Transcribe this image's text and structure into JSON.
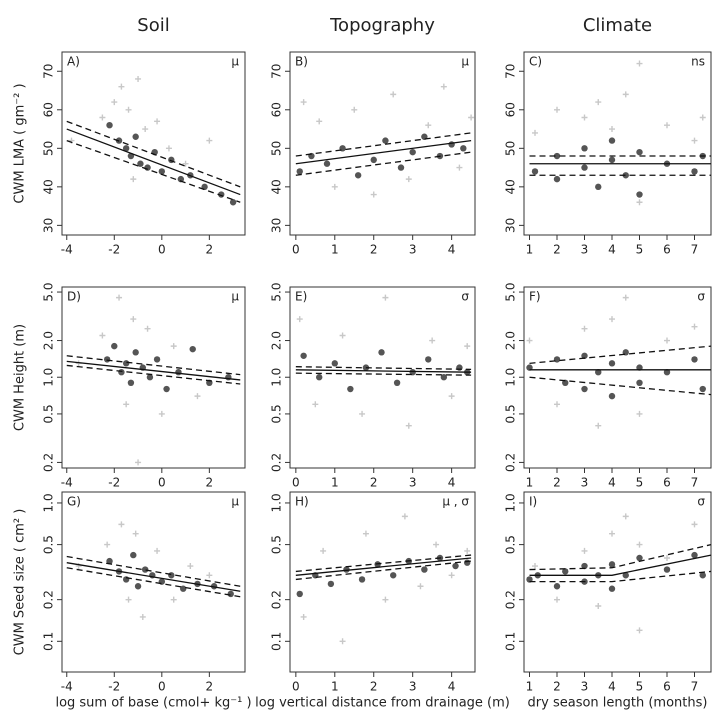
{
  "chart_data": [
    {
      "type": "scatter",
      "title": "Soil",
      "ylabel": "CWM LMA ( gm⁻² )",
      "panel": "A)",
      "note": "μ",
      "xlim": [
        -4.2,
        3.5
      ],
      "ylim": [
        27.5,
        75
      ],
      "xticks": [
        -4,
        -2,
        0,
        2
      ],
      "yticks": [
        30,
        40,
        50,
        60,
        70
      ],
      "series": [
        {
          "color": "#c8c8c8",
          "marker": "plus",
          "x": [
            -3.8,
            -2.5,
            -2,
            -1.7,
            -1.4,
            -1.2,
            -1,
            -0.7,
            -0.2,
            0.3,
            1,
            2
          ],
          "values": [
            52,
            58,
            62,
            66,
            60,
            42,
            68,
            55,
            57,
            50,
            46,
            52
          ]
        },
        {
          "color": "#555555",
          "marker": "circle",
          "x": [
            -2.2,
            -1.8,
            -1.5,
            -1.3,
            -1.1,
            -0.9,
            -0.6,
            -0.3,
            0,
            0.4,
            0.8,
            1.2,
            1.8,
            2.5,
            3
          ],
          "values": [
            56,
            52,
            50,
            48,
            53,
            46,
            45,
            49,
            44,
            47,
            42,
            43,
            40,
            38,
            36
          ]
        }
      ],
      "lines": [
        {
          "style": "solid",
          "x": [
            -4,
            3.3
          ],
          "values": [
            55,
            38
          ]
        },
        {
          "style": "dashed",
          "x": [
            -4,
            3.3
          ],
          "values": [
            57,
            40
          ]
        },
        {
          "style": "dashed",
          "x": [
            -4,
            3.3
          ],
          "values": [
            52,
            36
          ]
        }
      ]
    },
    {
      "type": "scatter",
      "title": "Topography",
      "panel": "B)",
      "note": "μ",
      "xlim": [
        -0.15,
        4.6
      ],
      "ylim": [
        27.5,
        75
      ],
      "xticks": [
        0,
        1,
        2,
        3,
        4
      ],
      "yticks": [
        30,
        40,
        50,
        60,
        70
      ],
      "series": [
        {
          "color": "#c8c8c8",
          "marker": "plus",
          "x": [
            0.2,
            0.6,
            1,
            1.5,
            2,
            2.5,
            2.9,
            3.4,
            3.8,
            4.2,
            4.5
          ],
          "values": [
            62,
            57,
            40,
            60,
            38,
            64,
            42,
            56,
            66,
            45,
            58
          ]
        },
        {
          "color": "#555555",
          "marker": "circle",
          "x": [
            0.1,
            0.4,
            0.8,
            1.2,
            1.6,
            2,
            2.3,
            2.7,
            3,
            3.3,
            3.7,
            4,
            4.3
          ],
          "values": [
            44,
            48,
            46,
            50,
            43,
            47,
            52,
            45,
            49,
            53,
            48,
            51,
            50
          ]
        }
      ],
      "lines": [
        {
          "style": "solid",
          "x": [
            0,
            4.5
          ],
          "values": [
            46,
            52
          ]
        },
        {
          "style": "dashed",
          "x": [
            0,
            4.5
          ],
          "values": [
            48,
            54
          ]
        },
        {
          "style": "dashed",
          "x": [
            0,
            4.5
          ],
          "values": [
            43,
            49
          ]
        }
      ]
    },
    {
      "type": "scatter",
      "title": "Climate",
      "panel": "C)",
      "note": "ns",
      "xlim": [
        0.8,
        7.6
      ],
      "ylim": [
        27.5,
        75
      ],
      "xticks": [
        1,
        2,
        3,
        4,
        5,
        6,
        7
      ],
      "yticks": [
        30,
        40,
        50,
        60,
        70
      ],
      "series": [
        {
          "color": "#c8c8c8",
          "marker": "plus",
          "x": [
            1.2,
            2,
            3,
            3.5,
            4,
            4.5,
            5,
            5,
            6,
            7,
            7.3
          ],
          "values": [
            54,
            60,
            58,
            62,
            55,
            64,
            72,
            36,
            56,
            52,
            58
          ]
        },
        {
          "color": "#555555",
          "marker": "circle",
          "x": [
            1.2,
            2,
            2,
            3,
            3,
            3.5,
            4,
            4,
            4.5,
            5,
            5,
            6,
            7,
            7.3
          ],
          "values": [
            44,
            48,
            42,
            50,
            45,
            40,
            47,
            52,
            43,
            49,
            38,
            46,
            44,
            48
          ]
        }
      ],
      "lines": [
        {
          "style": "solid",
          "x": [
            1,
            7.6
          ],
          "values": [
            46,
            46
          ]
        },
        {
          "style": "dashed",
          "x": [
            1,
            7.6
          ],
          "values": [
            48,
            48
          ]
        },
        {
          "style": "dashed",
          "x": [
            1,
            7.6
          ],
          "values": [
            43,
            43
          ]
        }
      ]
    },
    {
      "type": "scatter",
      "ylabel": "CWM Height (m)",
      "panel": "D)",
      "note": "μ",
      "ylog": true,
      "xlim": [
        -4.2,
        3.5
      ],
      "ylim": [
        0.18,
        5.5
      ],
      "xticks": [
        -4,
        -2,
        0,
        2
      ],
      "yticks": [
        0.2,
        0.5,
        {
          "value": 1,
          "label": "1.0"
        },
        {
          "value": 2,
          "label": "2.0"
        },
        {
          "value": 5,
          "label": "5.0"
        }
      ],
      "series": [
        {
          "color": "#c8c8c8",
          "marker": "plus",
          "x": [
            -3.5,
            -2.5,
            -1.8,
            -1.5,
            -1.2,
            -1,
            -0.6,
            0,
            0.5,
            1.5
          ],
          "values": [
            1.3,
            2.2,
            4.5,
            0.6,
            3,
            0.2,
            2.5,
            0.5,
            1.8,
            0.7
          ]
        },
        {
          "color": "#555555",
          "marker": "circle",
          "x": [
            -2.3,
            -2,
            -1.7,
            -1.5,
            -1.3,
            -1.1,
            -0.8,
            -0.5,
            -0.2,
            0.2,
            0.7,
            1.3,
            2,
            2.8
          ],
          "values": [
            1.4,
            1.8,
            1.1,
            1.3,
            0.9,
            1.6,
            1.2,
            1,
            1.4,
            0.8,
            1.1,
            1.7,
            0.9,
            1
          ]
        }
      ],
      "lines": [
        {
          "style": "solid",
          "x": [
            -4,
            3.3
          ],
          "values": [
            1.35,
            0.95
          ]
        },
        {
          "style": "dashed",
          "x": [
            -4,
            3.3
          ],
          "values": [
            1.5,
            1.05
          ]
        },
        {
          "style": "dashed",
          "x": [
            -4,
            3.3
          ],
          "values": [
            1.25,
            0.88
          ]
        }
      ]
    },
    {
      "type": "scatter",
      "panel": "E)",
      "note": "σ",
      "ylog": true,
      "xlim": [
        -0.15,
        4.6
      ],
      "ylim": [
        0.18,
        5.5
      ],
      "xticks": [
        0,
        1,
        2,
        3,
        4
      ],
      "yticks": [
        0.2,
        0.5,
        {
          "value": 1,
          "label": "1.0"
        },
        {
          "value": 2,
          "label": "2.0"
        },
        {
          "value": 5,
          "label": "5.0"
        }
      ],
      "series": [
        {
          "color": "#c8c8c8",
          "marker": "plus",
          "x": [
            0.1,
            0.5,
            1.2,
            1.7,
            2.3,
            2.9,
            3.5,
            4,
            4.4
          ],
          "values": [
            3,
            0.6,
            2.2,
            0.5,
            4.5,
            0.4,
            2,
            0.7,
            1.8
          ]
        },
        {
          "color": "#555555",
          "marker": "circle",
          "x": [
            0.2,
            0.6,
            1,
            1.4,
            1.8,
            2.2,
            2.6,
            3,
            3.4,
            3.8,
            4.2,
            4.4
          ],
          "values": [
            1.5,
            1,
            1.3,
            0.8,
            1.2,
            1.6,
            0.9,
            1.1,
            1.4,
            1,
            1.2,
            1.1
          ]
        }
      ],
      "lines": [
        {
          "style": "solid",
          "x": [
            0,
            4.5
          ],
          "values": [
            1.15,
            1.1
          ]
        },
        {
          "style": "dashed",
          "x": [
            0,
            4.5
          ],
          "values": [
            1.22,
            1.16
          ]
        },
        {
          "style": "dashed",
          "x": [
            0,
            4.5
          ],
          "values": [
            1.08,
            1.04
          ]
        }
      ]
    },
    {
      "type": "scatter",
      "panel": "F)",
      "note": "σ",
      "ylog": true,
      "xlim": [
        0.8,
        7.6
      ],
      "ylim": [
        0.18,
        5.5
      ],
      "xticks": [
        1,
        2,
        3,
        4,
        5,
        6,
        7
      ],
      "yticks": [
        0.2,
        0.5,
        {
          "value": 1,
          "label": "1.0"
        },
        {
          "value": 2,
          "label": "2.0"
        },
        {
          "value": 5,
          "label": "5.0"
        }
      ],
      "series": [
        {
          "color": "#c8c8c8",
          "marker": "plus",
          "x": [
            1,
            2,
            3,
            3.5,
            4,
            4.5,
            5,
            6,
            7
          ],
          "values": [
            2,
            0.6,
            2.5,
            0.4,
            3,
            4.5,
            0.5,
            2,
            2.6
          ]
        },
        {
          "color": "#555555",
          "marker": "circle",
          "x": [
            1,
            2,
            2.3,
            3,
            3,
            3.5,
            4,
            4,
            4.5,
            5,
            5,
            6,
            7,
            7.3
          ],
          "values": [
            1.2,
            1.4,
            0.9,
            1.5,
            0.8,
            1.1,
            1.3,
            0.7,
            1.6,
            1.2,
            0.9,
            1.1,
            1.4,
            0.8
          ]
        }
      ],
      "lines": [
        {
          "style": "solid",
          "x": [
            1,
            7.6
          ],
          "values": [
            1.15,
            1.15
          ]
        },
        {
          "style": "dashed",
          "x": [
            1,
            7.6
          ],
          "values": [
            1.3,
            1.8
          ]
        },
        {
          "style": "dashed",
          "x": [
            1,
            7.6
          ],
          "values": [
            1,
            0.72
          ]
        }
      ]
    },
    {
      "type": "scatter",
      "ylabel": "CWM Seed size ( cm² )",
      "xlabel": "log sum of base (cmol+ kg⁻¹ )",
      "panel": "G)",
      "note": "μ",
      "ylog": true,
      "xlim": [
        -4.2,
        3.5
      ],
      "ylim": [
        0.06,
        1.2
      ],
      "xticks": [
        -4,
        -2,
        0,
        2
      ],
      "yticks": [
        0.1,
        0.2,
        0.5,
        {
          "value": 1,
          "label": "1.0"
        }
      ],
      "series": [
        {
          "color": "#c8c8c8",
          "marker": "plus",
          "x": [
            -3.5,
            -2.3,
            -1.7,
            -1.4,
            -1.1,
            -0.8,
            -0.2,
            0.5,
            1.2,
            2
          ],
          "values": [
            0.35,
            0.5,
            0.7,
            0.2,
            0.6,
            0.15,
            0.45,
            0.2,
            0.35,
            0.3
          ]
        },
        {
          "color": "#555555",
          "marker": "circle",
          "x": [
            -2.2,
            -1.8,
            -1.5,
            -1.2,
            -1,
            -0.7,
            -0.4,
            0,
            0.4,
            0.9,
            1.5,
            2.2,
            2.9
          ],
          "values": [
            0.38,
            0.32,
            0.28,
            0.42,
            0.25,
            0.33,
            0.3,
            0.27,
            0.3,
            0.24,
            0.26,
            0.25,
            0.22
          ]
        }
      ],
      "lines": [
        {
          "style": "solid",
          "x": [
            -4,
            3.3
          ],
          "values": [
            0.37,
            0.23
          ]
        },
        {
          "style": "dashed",
          "x": [
            -4,
            3.3
          ],
          "values": [
            0.41,
            0.25
          ]
        },
        {
          "style": "dashed",
          "x": [
            -4,
            3.3
          ],
          "values": [
            0.34,
            0.21
          ]
        }
      ]
    },
    {
      "type": "scatter",
      "xlabel": "log vertical distance from drainage (m)",
      "panel": "H)",
      "note": "μ , σ",
      "ylog": true,
      "xlim": [
        -0.15,
        4.6
      ],
      "ylim": [
        0.06,
        1.2
      ],
      "xticks": [
        0,
        1,
        2,
        3,
        4
      ],
      "yticks": [
        0.1,
        0.2,
        0.5,
        {
          "value": 1,
          "label": "1.0"
        }
      ],
      "series": [
        {
          "color": "#c8c8c8",
          "marker": "plus",
          "x": [
            0.2,
            0.7,
            1.2,
            1.8,
            2.3,
            2.8,
            3.2,
            3.6,
            4,
            4.4
          ],
          "values": [
            0.15,
            0.45,
            0.1,
            0.6,
            0.2,
            0.8,
            0.25,
            0.5,
            0.3,
            0.45
          ]
        },
        {
          "color": "#555555",
          "marker": "circle",
          "x": [
            0.1,
            0.5,
            0.9,
            1.3,
            1.7,
            2.1,
            2.5,
            2.9,
            3.3,
            3.7,
            4.1,
            4.4
          ],
          "values": [
            0.22,
            0.3,
            0.26,
            0.33,
            0.28,
            0.36,
            0.3,
            0.38,
            0.33,
            0.4,
            0.35,
            0.37
          ]
        }
      ],
      "lines": [
        {
          "style": "solid",
          "x": [
            0,
            4.5
          ],
          "values": [
            0.3,
            0.4
          ]
        },
        {
          "style": "dashed",
          "x": [
            0,
            4.5
          ],
          "values": [
            0.32,
            0.42
          ]
        },
        {
          "style": "dashed",
          "x": [
            0,
            4.5
          ],
          "values": [
            0.28,
            0.38
          ]
        }
      ]
    },
    {
      "type": "scatter",
      "xlabel": "dry season length (months)",
      "panel": "I)",
      "note": "σ",
      "ylog": true,
      "xlim": [
        0.8,
        7.6
      ],
      "ylim": [
        0.06,
        1.2
      ],
      "xticks": [
        1,
        2,
        3,
        4,
        5,
        6,
        7
      ],
      "yticks": [
        0.1,
        0.2,
        0.5,
        {
          "value": 1,
          "label": "1.0"
        }
      ],
      "series": [
        {
          "color": "#c8c8c8",
          "marker": "plus",
          "x": [
            1.2,
            2,
            3,
            3.5,
            4,
            4.5,
            5,
            5,
            6,
            7
          ],
          "values": [
            0.35,
            0.2,
            0.45,
            0.18,
            0.6,
            0.8,
            0.12,
            0.5,
            0.4,
            0.7
          ]
        },
        {
          "color": "#555555",
          "marker": "circle",
          "x": [
            1,
            1.3,
            2,
            2.3,
            3,
            3,
            3.5,
            4,
            4,
            4.5,
            5,
            6,
            7,
            7.3
          ],
          "values": [
            0.28,
            0.3,
            0.25,
            0.32,
            0.27,
            0.35,
            0.3,
            0.24,
            0.36,
            0.3,
            0.4,
            0.33,
            0.42,
            0.3
          ]
        }
      ],
      "lines": [
        {
          "style": "solid",
          "x": [
            1,
            4,
            7.6
          ],
          "values": [
            0.3,
            0.3,
            0.42
          ]
        },
        {
          "style": "dashed",
          "x": [
            1,
            4,
            7.6
          ],
          "values": [
            0.33,
            0.34,
            0.5
          ]
        },
        {
          "style": "dashed",
          "x": [
            1,
            4,
            7.6
          ],
          "values": [
            0.27,
            0.27,
            0.32
          ]
        }
      ]
    }
  ]
}
